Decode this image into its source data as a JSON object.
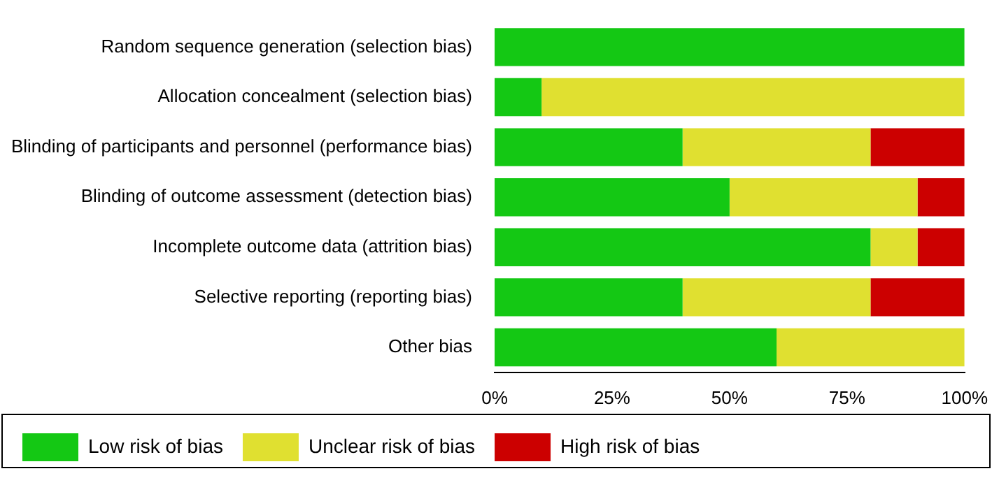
{
  "chart_data": {
    "type": "bar",
    "orientation": "horizontal",
    "stacked": true,
    "categories": [
      "Random sequence generation (selection bias)",
      "Allocation concealment (selection bias)",
      "Blinding of participants and personnel (performance bias)",
      "Blinding of outcome assessment (detection bias)",
      "Incomplete outcome data (attrition bias)",
      "Selective reporting (reporting bias)",
      "Other bias"
    ],
    "series": [
      {
        "name": "Low risk of bias",
        "color": "#14c814",
        "values": [
          100,
          10,
          40,
          50,
          80,
          40,
          60
        ]
      },
      {
        "name": "Unclear risk of bias",
        "color": "#e0e030",
        "values": [
          0,
          90,
          40,
          40,
          10,
          40,
          40
        ]
      },
      {
        "name": "High risk of bias",
        "color": "#cc0000",
        "values": [
          0,
          0,
          20,
          10,
          10,
          20,
          0
        ]
      }
    ],
    "xlim": [
      0,
      100
    ],
    "xticks": [
      {
        "value": 0,
        "label": "0%"
      },
      {
        "value": 25,
        "label": "25%"
      },
      {
        "value": 50,
        "label": "50%"
      },
      {
        "value": 75,
        "label": "75%"
      },
      {
        "value": 100,
        "label": "100%"
      }
    ],
    "grid": false,
    "legend": "bottom"
  }
}
